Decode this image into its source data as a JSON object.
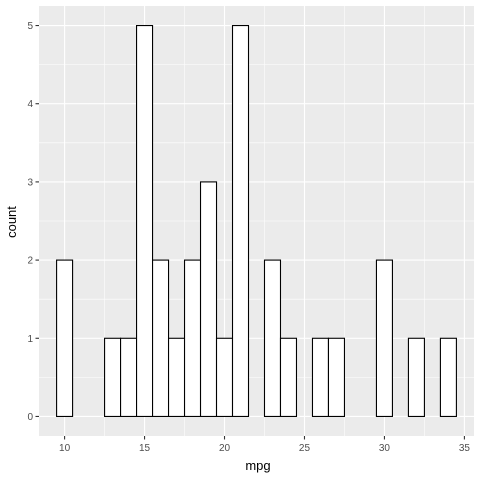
{
  "chart_data": {
    "type": "bar",
    "subtype": "histogram",
    "xlabel": "mpg",
    "ylabel": "count",
    "xlim": [
      8.4,
      35.6
    ],
    "ylim": [
      -0.25,
      5.25
    ],
    "x_ticks": [
      10,
      15,
      20,
      25,
      30,
      35
    ],
    "y_ticks": [
      0,
      1,
      2,
      3,
      4,
      5
    ],
    "bin_width": 1.0,
    "bins": [
      {
        "x_min": 9.5,
        "x_max": 10.5,
        "count": 2
      },
      {
        "x_min": 10.5,
        "x_max": 11.5,
        "count": 0
      },
      {
        "x_min": 11.5,
        "x_max": 12.5,
        "count": 0
      },
      {
        "x_min": 12.5,
        "x_max": 13.5,
        "count": 1
      },
      {
        "x_min": 13.5,
        "x_max": 14.5,
        "count": 1
      },
      {
        "x_min": 14.5,
        "x_max": 15.5,
        "count": 5
      },
      {
        "x_min": 15.5,
        "x_max": 16.5,
        "count": 2
      },
      {
        "x_min": 16.5,
        "x_max": 17.5,
        "count": 1
      },
      {
        "x_min": 17.5,
        "x_max": 18.5,
        "count": 2
      },
      {
        "x_min": 18.5,
        "x_max": 19.5,
        "count": 3
      },
      {
        "x_min": 19.5,
        "x_max": 20.5,
        "count": 1
      },
      {
        "x_min": 20.5,
        "x_max": 21.5,
        "count": 5
      },
      {
        "x_min": 21.5,
        "x_max": 22.5,
        "count": 0
      },
      {
        "x_min": 22.5,
        "x_max": 23.5,
        "count": 2
      },
      {
        "x_min": 23.5,
        "x_max": 24.5,
        "count": 1
      },
      {
        "x_min": 24.5,
        "x_max": 25.5,
        "count": 0
      },
      {
        "x_min": 25.5,
        "x_max": 26.5,
        "count": 1
      },
      {
        "x_min": 26.5,
        "x_max": 27.5,
        "count": 1
      },
      {
        "x_min": 27.5,
        "x_max": 28.5,
        "count": 0
      },
      {
        "x_min": 28.5,
        "x_max": 29.5,
        "count": 0
      },
      {
        "x_min": 29.5,
        "x_max": 30.5,
        "count": 2
      },
      {
        "x_min": 30.5,
        "x_max": 31.5,
        "count": 0
      },
      {
        "x_min": 31.5,
        "x_max": 32.5,
        "count": 1
      },
      {
        "x_min": 32.5,
        "x_max": 33.5,
        "count": 0
      },
      {
        "x_min": 33.5,
        "x_max": 34.5,
        "count": 1
      }
    ],
    "grid": true,
    "panel_background": "#ebebeb",
    "grid_color": "#ffffff",
    "bar_fill": "#ffffff",
    "bar_outline": "#000000"
  }
}
